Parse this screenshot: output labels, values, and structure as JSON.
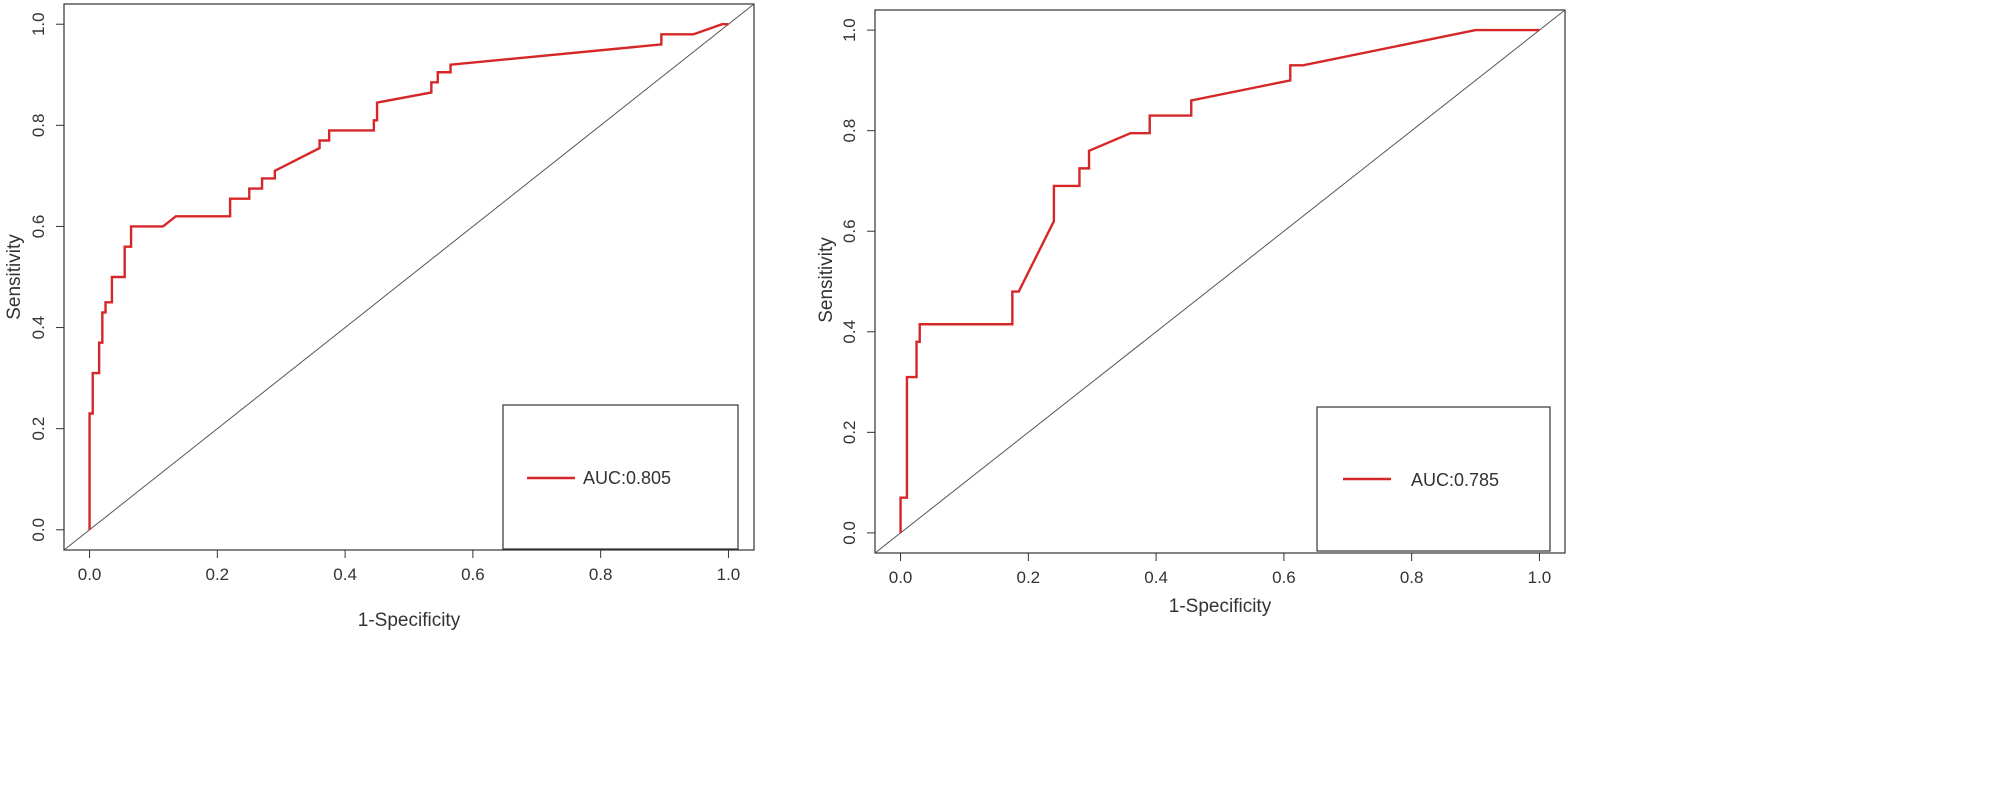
{
  "chart_data": [
    {
      "type": "line",
      "title": "",
      "xlabel": "1-Specificity",
      "ylabel": "Sensitivity",
      "xlim": [
        -0.04,
        1.04
      ],
      "ylim": [
        -0.04,
        1.04
      ],
      "x_ticks": [
        "0.0",
        "0.2",
        "0.4",
        "0.6",
        "0.8",
        "1.0"
      ],
      "y_ticks": [
        "0.0",
        "0.2",
        "0.4",
        "0.6",
        "0.8",
        "1.0"
      ],
      "grid": false,
      "legend_position": "bottom-right",
      "series": [
        {
          "name": "AUC:0.805",
          "color": "#d62728",
          "x": [
            0,
            0,
            0.005,
            0.005,
            0.015,
            0.015,
            0.02,
            0.02,
            0.025,
            0.025,
            0.035,
            0.035,
            0.055,
            0.055,
            0.065,
            0.065,
            0.115,
            0.135,
            0.22,
            0.22,
            0.25,
            0.25,
            0.27,
            0.27,
            0.29,
            0.29,
            0.36,
            0.36,
            0.375,
            0.375,
            0.445,
            0.445,
            0.45,
            0.45,
            0.535,
            0.535,
            0.545,
            0.545,
            0.565,
            0.565,
            0.895,
            0.895,
            0.945,
            0.99,
            1.0
          ],
          "y": [
            0,
            0.23,
            0.23,
            0.31,
            0.31,
            0.37,
            0.37,
            0.43,
            0.43,
            0.45,
            0.45,
            0.5,
            0.5,
            0.56,
            0.56,
            0.6,
            0.6,
            0.62,
            0.62,
            0.655,
            0.655,
            0.675,
            0.675,
            0.695,
            0.695,
            0.71,
            0.755,
            0.77,
            0.77,
            0.79,
            0.79,
            0.81,
            0.81,
            0.845,
            0.865,
            0.885,
            0.885,
            0.905,
            0.905,
            0.92,
            0.96,
            0.98,
            0.98,
            1.0,
            1.0
          ]
        }
      ],
      "reference_line": {
        "x": [
          0,
          1
        ],
        "y": [
          0,
          1
        ],
        "color": "#555555"
      }
    },
    {
      "type": "line",
      "title": "",
      "xlabel": "1-Specificity",
      "ylabel": "Sensitivity",
      "xlim": [
        -0.04,
        1.04
      ],
      "ylim": [
        -0.04,
        1.04
      ],
      "x_ticks": [
        "0.0",
        "0.2",
        "0.4",
        "0.6",
        "0.8",
        "1.0"
      ],
      "y_ticks": [
        "0.0",
        "0.2",
        "0.4",
        "0.6",
        "0.8",
        "1.0"
      ],
      "grid": false,
      "legend_position": "bottom-right",
      "series": [
        {
          "name": "AUC:0.785",
          "color": "#d62728",
          "x": [
            0,
            0,
            0.01,
            0.01,
            0.025,
            0.025,
            0.03,
            0.03,
            0.175,
            0.175,
            0.185,
            0.24,
            0.24,
            0.28,
            0.28,
            0.295,
            0.295,
            0.36,
            0.39,
            0.39,
            0.455,
            0.455,
            0.61,
            0.61,
            0.63,
            0.9,
            1.0
          ],
          "y": [
            0,
            0.07,
            0.07,
            0.31,
            0.31,
            0.38,
            0.38,
            0.415,
            0.415,
            0.48,
            0.48,
            0.62,
            0.69,
            0.69,
            0.725,
            0.725,
            0.76,
            0.795,
            0.795,
            0.83,
            0.83,
            0.86,
            0.9,
            0.93,
            0.93,
            1.0,
            1.0
          ]
        }
      ],
      "reference_line": {
        "x": [
          0,
          1
        ],
        "y": [
          0,
          1
        ],
        "color": "#555555"
      }
    }
  ]
}
